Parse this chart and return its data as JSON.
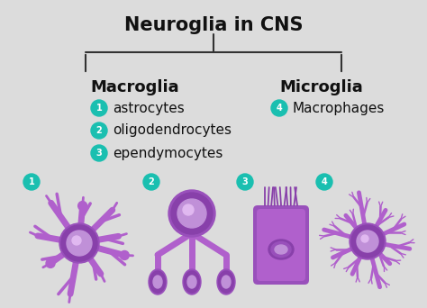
{
  "title": "Neuroglia in CNS",
  "title_fontsize": 15,
  "title_fontweight": "bold",
  "background_color": "#dcdcdc",
  "left_heading": "Macroglia",
  "right_heading": "Microglia",
  "heading_fontsize": 13,
  "heading_fontweight": "bold",
  "heading_color": "#111111",
  "items_left": [
    {
      "num": "1",
      "text": "astrocytes"
    },
    {
      "num": "2",
      "text": "oligodendrocytes"
    },
    {
      "num": "3",
      "text": "ependymocytes"
    }
  ],
  "items_right": [
    {
      "num": "4",
      "text": "Macrophages"
    }
  ],
  "item_fontsize": 11,
  "item_color": "#111111",
  "badge_color": "#1abfb0",
  "badge_text_color": "#ffffff",
  "purple_main": "#b060cc",
  "purple_dark": "#8840aa",
  "purple_mid": "#9950bb",
  "purple_light": "#cc88dd",
  "purple_nucleus": "#c090d8"
}
